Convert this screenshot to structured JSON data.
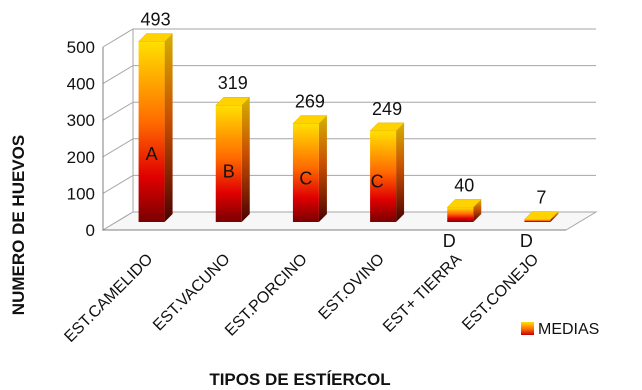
{
  "chart_data": {
    "type": "bar",
    "title": "",
    "xlabel": "TIPOS DE ESTÍERCOL",
    "ylabel": "NUMERO DE HUEVOS",
    "ylim": [
      0,
      500
    ],
    "yticks": [
      "0",
      "100",
      "200",
      "300",
      "400",
      "500"
    ],
    "grid": true,
    "legend": {
      "position": "bottom-right",
      "entries": [
        "MEDIAS"
      ]
    },
    "categories": [
      "EST.CAMELIDO",
      "EST.VACUNO",
      "EST.PORCINO",
      "EST.OVINO",
      "EST+ TIERRA",
      "EST.CONEJO"
    ],
    "series": [
      {
        "name": "MEDIAS",
        "values": [
          493,
          319,
          269,
          249,
          40,
          7
        ]
      }
    ],
    "data_labels": [
      "493",
      "319",
      "269",
      "249",
      "40",
      "7"
    ],
    "group_letters": [
      "A",
      "B",
      "C",
      "C",
      "D",
      "D"
    ],
    "colors": {
      "top": "#ffe000",
      "mid": "#ff6a00",
      "base": "#7a0000",
      "grid": "#a6a6a6"
    }
  }
}
